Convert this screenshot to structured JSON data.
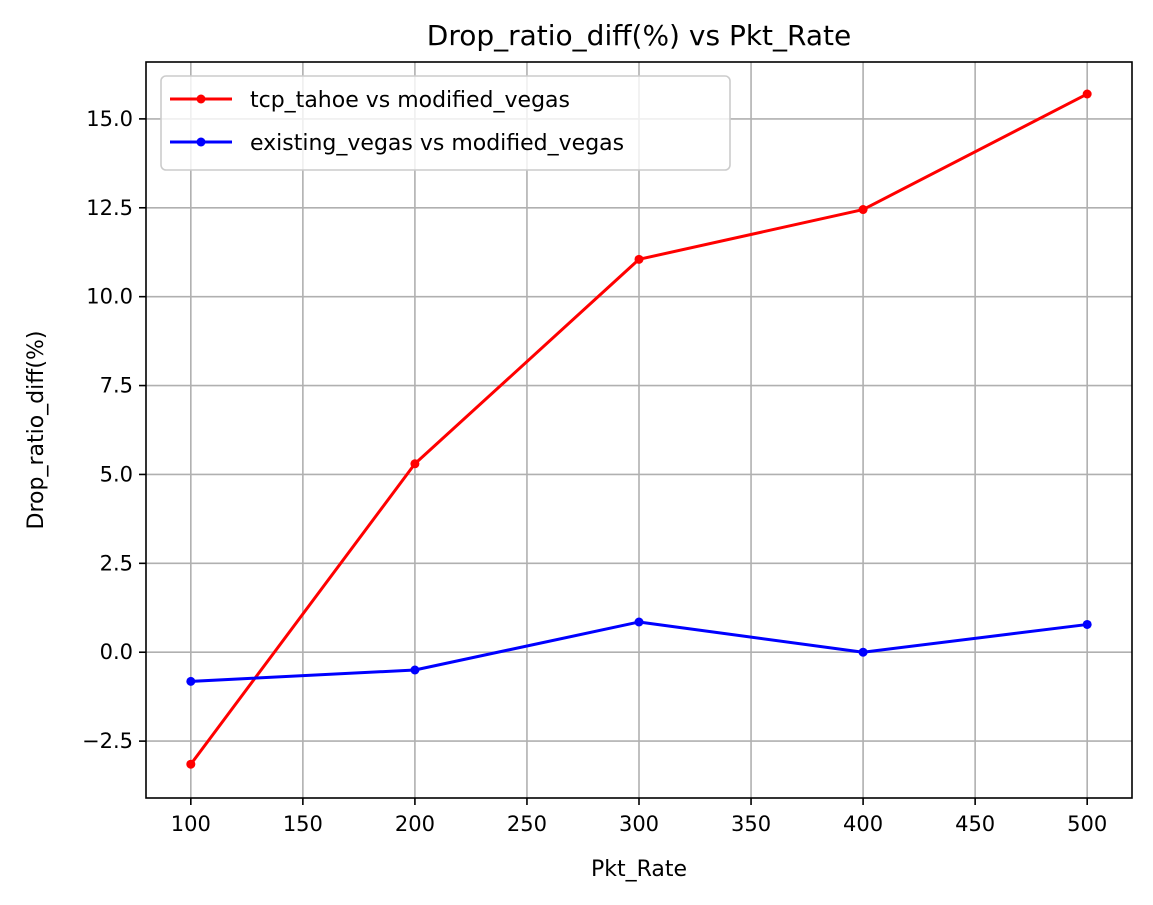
{
  "chart_data": {
    "type": "line",
    "title": "Drop_ratio_diff(%) vs Pkt_Rate",
    "xlabel": "Pkt_Rate",
    "ylabel": "Drop_ratio_diff(%)",
    "x": [
      100,
      200,
      300,
      400,
      500
    ],
    "xlim": [
      80,
      520
    ],
    "ylim": [
      -4.1,
      16.6
    ],
    "xticks": [
      100,
      150,
      200,
      250,
      300,
      350,
      400,
      450,
      500
    ],
    "yticks": [
      -2.5,
      0.0,
      2.5,
      5.0,
      7.5,
      10.0,
      12.5,
      15.0
    ],
    "xtick_labels": [
      "100",
      "150",
      "200",
      "250",
      "300",
      "350",
      "400",
      "450",
      "500"
    ],
    "ytick_labels": [
      "−2.5",
      "0.0",
      "2.5",
      "5.0",
      "7.5",
      "10.0",
      "12.5",
      "15.0"
    ],
    "grid": true,
    "legend_position": "upper-left",
    "series": [
      {
        "name": "tcp_tahoe vs modified_vegas",
        "color": "#ff0000",
        "marker": "circle",
        "values": [
          -3.15,
          5.3,
          11.05,
          12.45,
          15.7
        ]
      },
      {
        "name": "existing_vegas vs modified_vegas",
        "color": "#0000ff",
        "marker": "circle",
        "values": [
          -0.82,
          -0.5,
          0.85,
          0.0,
          0.78
        ]
      }
    ]
  }
}
